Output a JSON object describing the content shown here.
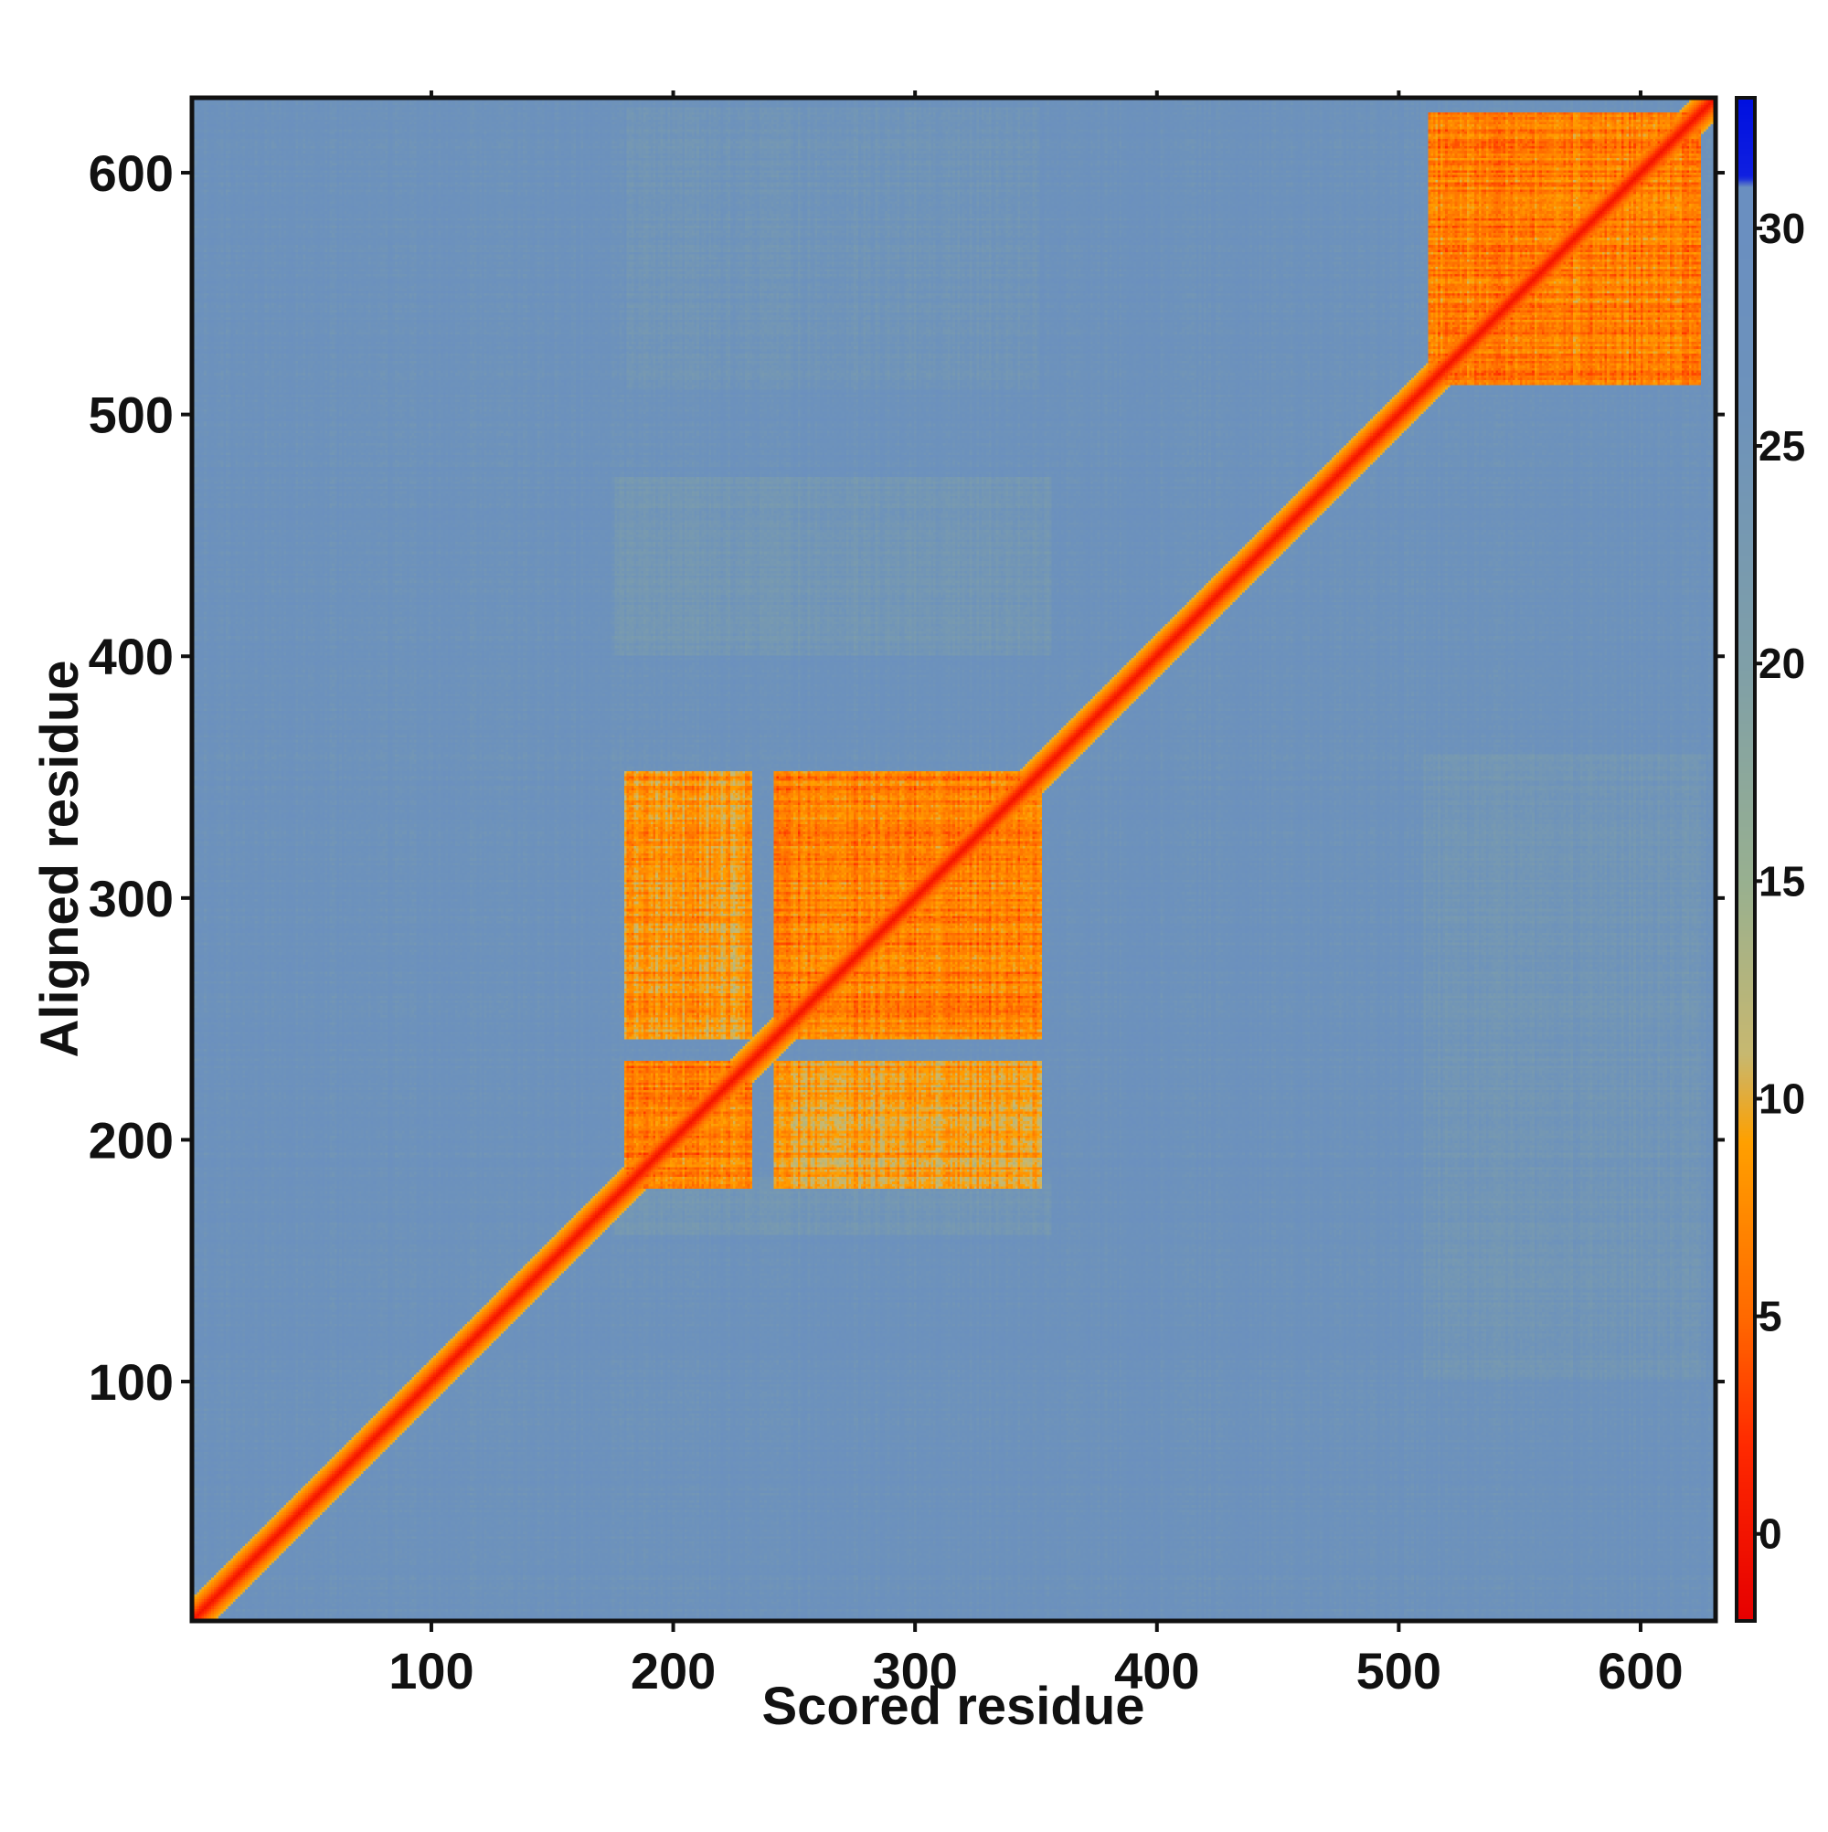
{
  "chart_data": {
    "type": "heatmap",
    "title": "",
    "xlabel": "Scored residue",
    "ylabel": "Aligned residue",
    "xlim": [
      1,
      631
    ],
    "ylim": [
      1,
      631
    ],
    "xticks": [
      100,
      200,
      300,
      400,
      500,
      600
    ],
    "yticks": [
      100,
      200,
      300,
      400,
      500,
      600
    ],
    "colorbar": {
      "range": [
        -2,
        33
      ],
      "ticks": [
        0,
        5,
        10,
        15,
        20,
        25,
        30
      ],
      "stops": [
        {
          "value": -2,
          "color": "#e60000"
        },
        {
          "value": 2,
          "color": "#ff2a00"
        },
        {
          "value": 5,
          "color": "#ff6a00"
        },
        {
          "value": 9,
          "color": "#ffa000"
        },
        {
          "value": 11,
          "color": "#c8b870"
        },
        {
          "value": 15,
          "color": "#98b090"
        },
        {
          "value": 20,
          "color": "#7f9fa8"
        },
        {
          "value": 26,
          "color": "#6d92bb"
        },
        {
          "value": 30,
          "color": "#6a8fc0"
        },
        {
          "value": 31,
          "color": "#6a8fc0"
        },
        {
          "value": 31.2,
          "color": "#1020e0"
        },
        {
          "value": 33,
          "color": "#0010e0"
        }
      ]
    },
    "description_values": {
      "background_error_A": 27,
      "diagonal_error_A": 0,
      "domains_residues": [
        [
          180,
          232
        ],
        [
          242,
          352
        ],
        [
          513,
          625
        ]
      ],
      "domain_block_error_A": 3
    }
  }
}
